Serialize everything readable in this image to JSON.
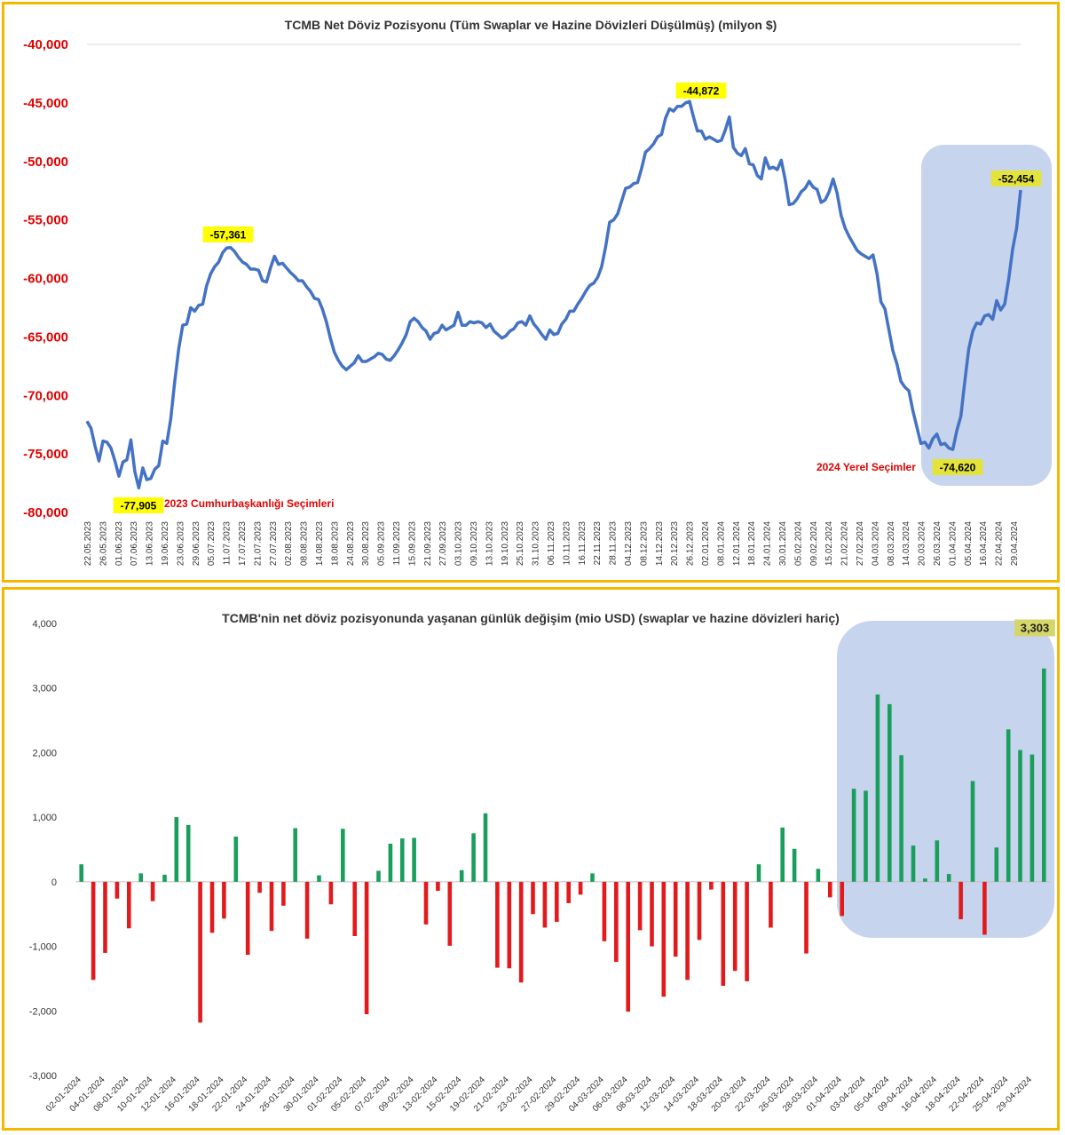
{
  "chart_data": [
    {
      "type": "line",
      "title": "TCMB Net Döviz Pozisyonu (Tüm Swaplar ve Hazine Dövizleri Düşülmüş) (milyon $)",
      "xlabel": "",
      "ylabel": "",
      "ylim": [
        -80000,
        -40000
      ],
      "yticks": [
        -40000,
        -45000,
        -50000,
        -55000,
        -60000,
        -65000,
        -70000,
        -75000,
        -80000
      ],
      "ytick_labels": [
        "-40,000",
        "-45,000",
        "-50,000",
        "-55,000",
        "-60,000",
        "-65,000",
        "-70,000",
        "-75,000",
        "-80,000"
      ],
      "tick_labels": [
        "22.05.2023",
        "26.05.2023",
        "01.06.2023",
        "07.06.2023",
        "13.06.2023",
        "19.06.2023",
        "23.06.2023",
        "29.06.2023",
        "05.07.2023",
        "11.07.2023",
        "17.07.2023",
        "21.07.2023",
        "27.07.2023",
        "02.08.2023",
        "08.08.2023",
        "14.08.2023",
        "18.08.2023",
        "24.08.2023",
        "30.08.2023",
        "05.09.2023",
        "11.09.2023",
        "15.09.2023",
        "21.09.2023",
        "27.09.2023",
        "03.10.2023",
        "09.10.2023",
        "13.10.2023",
        "19.10.2023",
        "25.10.2023",
        "31.10.2023",
        "06.11.2023",
        "10.11.2023",
        "16.11.2023",
        "22.11.2023",
        "28.11.2023",
        "04.12.2023",
        "08.12.2023",
        "14.12.2023",
        "20.12.2023",
        "26.12.2023",
        "02.01.2024",
        "08.01.2024",
        "12.01.2024",
        "18.01.2024",
        "24.01.2024",
        "30.01.2024",
        "05.02.2024",
        "09.02.2024",
        "15.02.2024",
        "21.02.2024",
        "27.02.2024",
        "04.03.2024",
        "08.03.2024",
        "14.03.2024",
        "20.03.2024",
        "26.03.2024",
        "01.04.2024",
        "05.04.2024",
        "16.04.2024",
        "22.04.2024",
        "29.04.2024"
      ],
      "series": [
        {
          "color": "#4472c4",
          "values": [
            -72200,
            -72800,
            -74300,
            -75600,
            -73900,
            -74000,
            -74500,
            -75600,
            -76900,
            -75700,
            -75500,
            -73800,
            -76500,
            -77905,
            -76200,
            -77200,
            -77100,
            -76300,
            -76000,
            -73900,
            -74100,
            -72000,
            -68800,
            -66000,
            -64000,
            -63900,
            -62500,
            -62800,
            -62300,
            -62200,
            -60600,
            -59600,
            -59000,
            -58600,
            -57800,
            -57400,
            -57361,
            -57700,
            -58200,
            -58600,
            -58800,
            -59200,
            -59200,
            -59300,
            -60200,
            -60300,
            -59100,
            -58100,
            -58800,
            -58700,
            -59100,
            -59500,
            -59800,
            -60200,
            -60200,
            -60700,
            -61100,
            -61700,
            -61800,
            -62600,
            -63700,
            -65100,
            -66300,
            -67000,
            -67500,
            -67800,
            -67500,
            -67200,
            -66600,
            -67100,
            -67100,
            -66900,
            -66700,
            -66400,
            -66500,
            -66900,
            -67000,
            -66600,
            -66100,
            -65500,
            -64800,
            -63700,
            -63400,
            -63700,
            -64200,
            -64500,
            -65200,
            -64700,
            -64600,
            -64000,
            -64400,
            -64200,
            -64000,
            -62900,
            -64000,
            -64000,
            -63700,
            -63800,
            -63700,
            -63800,
            -64200,
            -63900,
            -64500,
            -64800,
            -65100,
            -64900,
            -64500,
            -64300,
            -63800,
            -63700,
            -64000,
            -63200,
            -63900,
            -64300,
            -64800,
            -65200,
            -64400,
            -64800,
            -64700,
            -63900,
            -63500,
            -62800,
            -62800,
            -62200,
            -61700,
            -61100,
            -60600,
            -60400,
            -59900,
            -59000,
            -57300,
            -55200,
            -55000,
            -54500,
            -53400,
            -52300,
            -52200,
            -51900,
            -51800,
            -50600,
            -49200,
            -48900,
            -48500,
            -47900,
            -47700,
            -46300,
            -45500,
            -45700,
            -45300,
            -45300,
            -45000,
            -44872,
            -46200,
            -47400,
            -47400,
            -48100,
            -47900,
            -48100,
            -48300,
            -48200,
            -47300,
            -46200,
            -48800,
            -49300,
            -49500,
            -48900,
            -50200,
            -50300,
            -51200,
            -51500,
            -49700,
            -50600,
            -50500,
            -50700,
            -49900,
            -51600,
            -53700,
            -53600,
            -53200,
            -52600,
            -52300,
            -51700,
            -52200,
            -52400,
            -53500,
            -53300,
            -52600,
            -51500,
            -52700,
            -54600,
            -55700,
            -56400,
            -57000,
            -57600,
            -57900,
            -58100,
            -58300,
            -58000,
            -59600,
            -62000,
            -62600,
            -64400,
            -66200,
            -67300,
            -68800,
            -69300,
            -69600,
            -71300,
            -72700,
            -74100,
            -74000,
            -74500,
            -73700,
            -73300,
            -74200,
            -74100,
            -74500,
            -74620,
            -73000,
            -71800,
            -68800,
            -66000,
            -64500,
            -63800,
            -63900,
            -63200,
            -63100,
            -63500,
            -61900,
            -62700,
            -62200,
            -60100,
            -57500,
            -55700,
            -52454
          ]
        }
      ],
      "annotations": [
        {
          "label": "-57,361",
          "style": "yellow-box"
        },
        {
          "label": "-44,872",
          "style": "yellow-box"
        },
        {
          "label": "-52,454",
          "style": "yellow-box"
        },
        {
          "label": "-77,905",
          "style": "yellow-box"
        },
        {
          "label": "-74,620",
          "style": "yellow-box"
        },
        {
          "label": "2023 Cumhurbaşkanlığı Seçimleri",
          "style": "red-text"
        },
        {
          "label": "2024 Yerel Seçimler",
          "style": "red-text"
        }
      ],
      "grid": "major-y-top-only",
      "highlight": "right-end"
    },
    {
      "type": "bar",
      "title": "TCMB'nin net döviz pozisyonunda yaşanan günlük değişim (mio USD) (swaplar ve hazine dövizleri hariç)",
      "xlabel": "",
      "ylabel": "",
      "ylim": [
        -3000,
        4000
      ],
      "yticks": [
        4000,
        3000,
        2000,
        1000,
        0,
        -1000,
        -2000,
        -3000
      ],
      "ytick_labels": [
        "4,000",
        "3,000",
        "2,000",
        "1,000",
        "0",
        "-1,000",
        "-2,000",
        "-3,000"
      ],
      "tick_labels": [
        "02-01-2024",
        "04-01-2024",
        "08-01-2024",
        "10-01-2024",
        "12-01-2024",
        "16-01-2024",
        "18-01-2024",
        "22-01-2024",
        "24-01-2024",
        "26-01-2024",
        "30-01-2024",
        "01-02-2024",
        "05-02-2024",
        "07-02-2024",
        "09-02-2024",
        "13-02-2024",
        "15-02-2024",
        "19-02-2024",
        "21-02-2024",
        "23-02-2024",
        "27-02-2024",
        "29-02-2024",
        "04-03-2024",
        "06-03-2024",
        "08-03-2024",
        "12-03-2024",
        "14-03-2024",
        "18-03-2024",
        "20-03-2024",
        "22-03-2024",
        "26-03-2024",
        "28-03-2024",
        "01-04-2024",
        "03-04-2024",
        "05-04-2024",
        "09-04-2024",
        "16-04-2024",
        "18-04-2024",
        "22-04-2024",
        "25-04-2024",
        "29-04-2024"
      ],
      "values": [
        270,
        -1520,
        -1100,
        -260,
        -720,
        130,
        -300,
        110,
        1000,
        880,
        -2180,
        -790,
        -570,
        700,
        -1130,
        -170,
        -760,
        -370,
        830,
        -880,
        100,
        -350,
        820,
        -840,
        -2050,
        170,
        590,
        670,
        680,
        -660,
        -140,
        -990,
        180,
        750,
        1060,
        -1330,
        -1340,
        -1560,
        -500,
        -710,
        -620,
        -330,
        -200,
        130,
        -920,
        -1240,
        -2010,
        -750,
        -1000,
        -1780,
        -1160,
        -1520,
        -900,
        -120,
        -1610,
        -1380,
        -1540,
        270,
        -710,
        840,
        510,
        -1110,
        200,
        -240,
        -530,
        1440,
        1410,
        2900,
        2750,
        1960,
        560,
        50,
        640,
        120,
        -580,
        1560,
        -820,
        530,
        2360,
        2040,
        1970,
        3303
      ],
      "positive_color": "#1a9e5c",
      "negative_color": "#e31a1c",
      "annotations": [
        {
          "label": "3,303",
          "style": "olive-box"
        }
      ],
      "grid": "none",
      "highlight": "right-end"
    }
  ]
}
